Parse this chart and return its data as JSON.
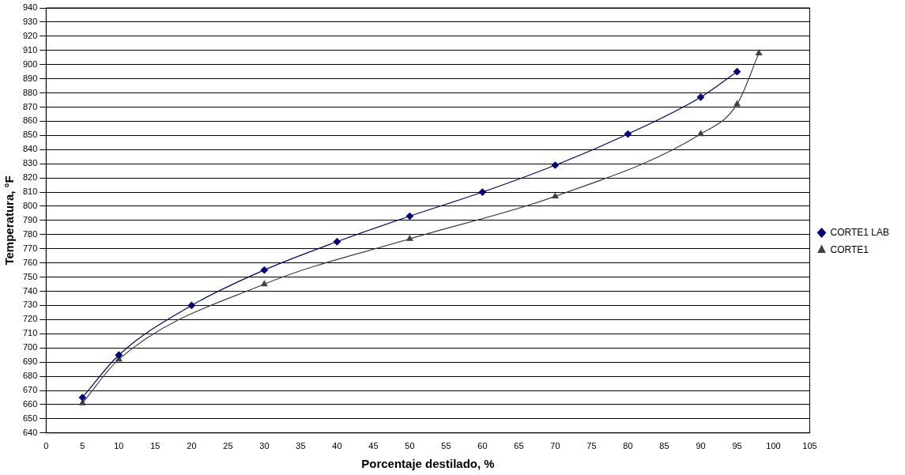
{
  "chart_data": {
    "type": "line",
    "xlabel": "Porcentaje destilado, %",
    "ylabel": "Temperatura, °F",
    "xlim": [
      0,
      105
    ],
    "xticks": [
      0,
      5,
      10,
      15,
      20,
      25,
      30,
      35,
      40,
      45,
      50,
      55,
      60,
      65,
      70,
      75,
      80,
      85,
      90,
      95,
      100,
      105
    ],
    "ylim": [
      640,
      940
    ],
    "yticks": [
      640,
      650,
      660,
      670,
      680,
      690,
      700,
      710,
      720,
      730,
      740,
      750,
      760,
      770,
      780,
      790,
      800,
      810,
      820,
      830,
      840,
      850,
      860,
      870,
      880,
      890,
      900,
      910,
      920,
      930,
      940
    ],
    "grid": "y",
    "legend": "right",
    "series": [
      {
        "name": "CORTE1 LAB",
        "color": "#000080",
        "marker": "diamond",
        "x": [
          5,
          10,
          20,
          30,
          40,
          50,
          60,
          70,
          80,
          90,
          95
        ],
        "values": [
          665,
          695,
          730,
          755,
          775,
          793,
          810,
          829,
          851,
          877,
          895
        ]
      },
      {
        "name": "CORTE1",
        "color": "#404040",
        "marker": "triangle",
        "x": [
          5,
          10,
          30,
          50,
          70,
          90,
          95,
          98
        ],
        "values": [
          661,
          692,
          745,
          777,
          807,
          851,
          872,
          908
        ]
      }
    ]
  }
}
